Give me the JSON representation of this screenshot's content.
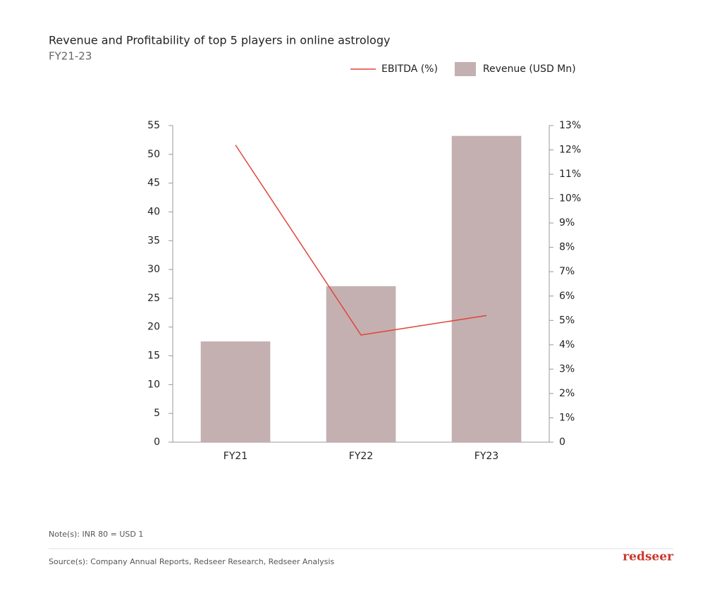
{
  "chart_data": {
    "type": "bar",
    "title": "Revenue and Profitability of top 5 players in online astrology",
    "subtitle": "FY21-23",
    "categories": [
      "FY21",
      "FY22",
      "FY23"
    ],
    "series": [
      {
        "name": "EBITDA (%)",
        "type": "line",
        "axis": "y2",
        "color": "#e0463b",
        "values": [
          12.2,
          4.4,
          5.2
        ]
      },
      {
        "name": "Revenue (USD Mn)",
        "type": "bar",
        "color": "#c4b0b1",
        "values": [
          17.5,
          27.1,
          53.2
        ]
      }
    ],
    "ylim": [
      0,
      55
    ],
    "yticks": [
      0,
      5,
      10,
      15,
      20,
      25,
      30,
      35,
      40,
      45,
      50,
      55
    ],
    "y2lim": [
      0,
      13
    ],
    "y2ticks": [
      0,
      {
        "value": 1,
        "label": "1%"
      },
      {
        "value": 2,
        "label": "2%"
      },
      {
        "value": 3,
        "label": "3%"
      },
      {
        "value": 4,
        "label": "4%"
      },
      {
        "value": 5,
        "label": "5%"
      },
      {
        "value": 6,
        "label": "6%"
      },
      {
        "value": 7,
        "label": "7%"
      },
      {
        "value": 8,
        "label": "8%"
      },
      {
        "value": 9,
        "label": "9%"
      },
      {
        "value": 10,
        "label": "10%"
      },
      {
        "value": 11,
        "label": "11%"
      },
      {
        "value": 12,
        "label": "12%"
      },
      {
        "value": 13,
        "label": "13%"
      }
    ],
    "grid": false,
    "legend": "top-right",
    "note": "Note(s): INR 80 = USD 1",
    "source": "Source(s): Company Annual Reports, Redseer Research, Redseer Analysis",
    "brand": "redseer"
  }
}
